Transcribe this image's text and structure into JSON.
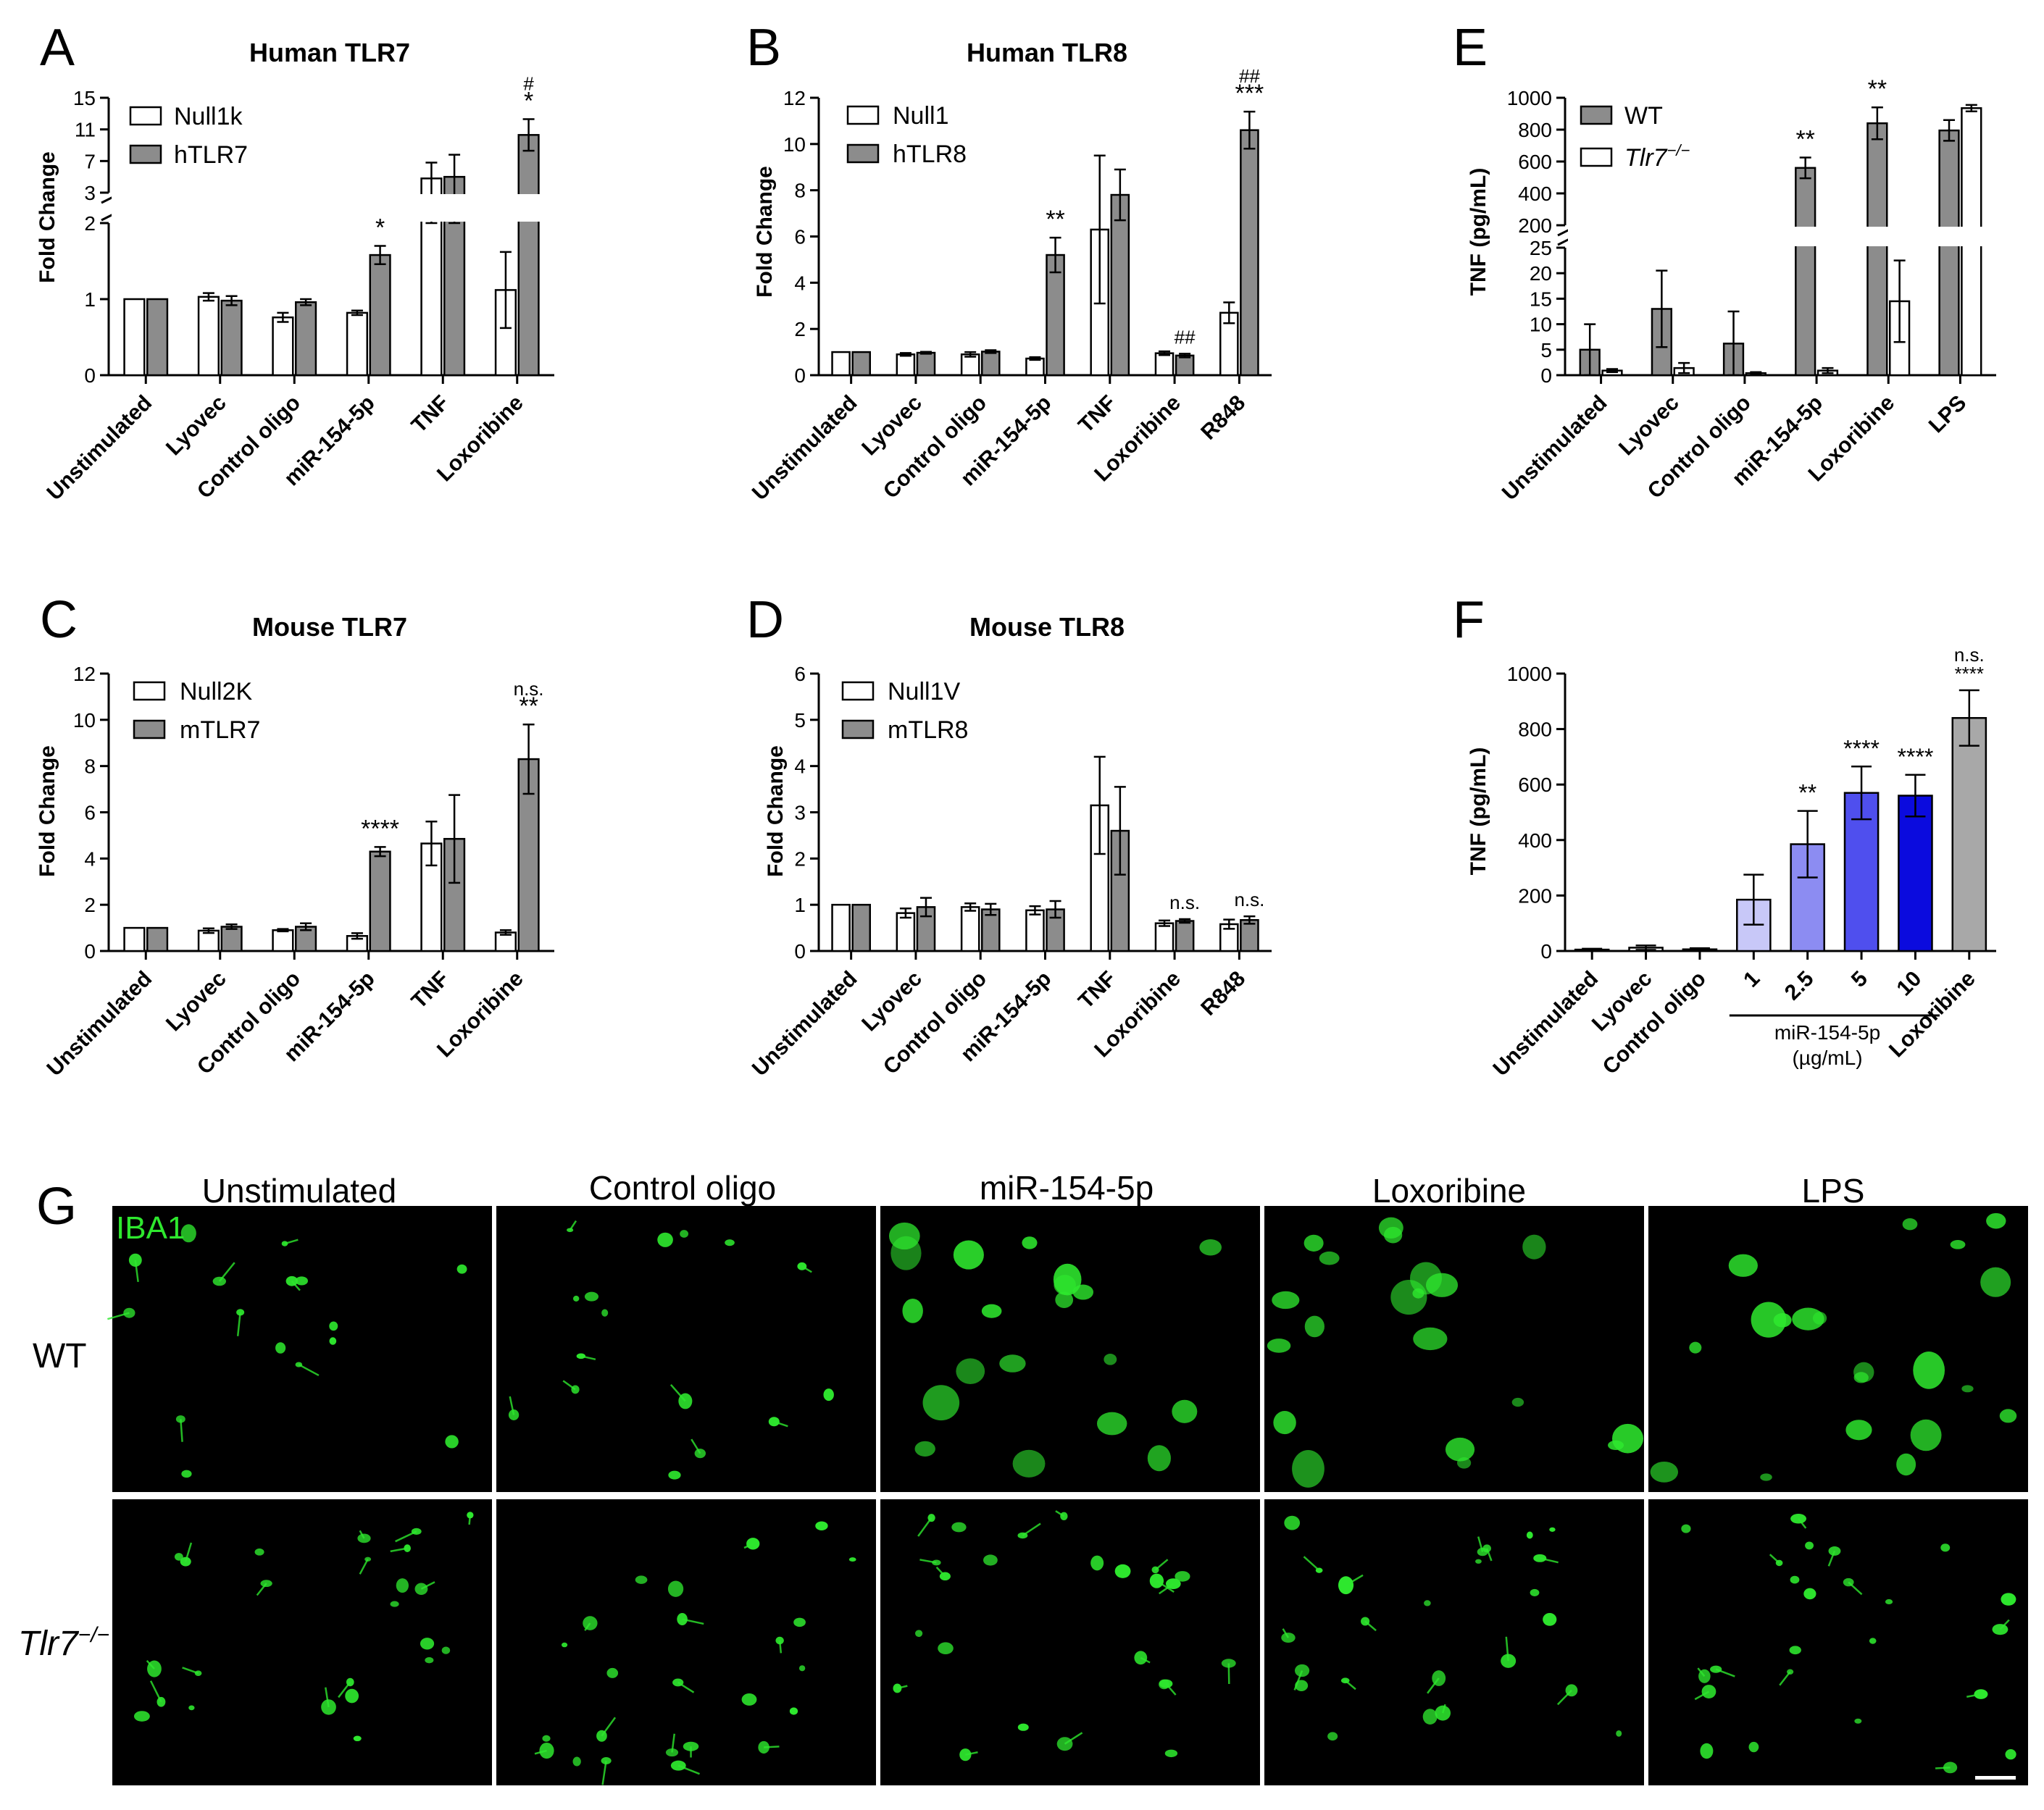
{
  "colors": {
    "bar_gray": "#8c8c8c",
    "bar_white": "#ffffff",
    "iba1_green": "#2ee82e",
    "image_bg": "#000000",
    "doseF": [
      "#c8c8f8",
      "#8c8cf2",
      "#4f4fee",
      "#0b0bde",
      "#a8a8a8"
    ]
  },
  "panels": {
    "A": {
      "letter": "A",
      "title": "Human TLR7",
      "ylabel": "Fold Change",
      "legend": [
        "Null1k",
        "hTLR7"
      ]
    },
    "B": {
      "letter": "B",
      "title": "Human TLR8",
      "ylabel": "Fold  Change",
      "legend": [
        "Null1",
        "hTLR8"
      ]
    },
    "C": {
      "letter": "C",
      "title": "Mouse TLR7",
      "ylabel": "Fold  Change",
      "legend": [
        "Null2K",
        "mTLR7"
      ]
    },
    "D": {
      "letter": "D",
      "title": "Mouse TLR8",
      "ylabel": "Fold  Change",
      "legend": [
        "Null1V",
        "mTLR8"
      ]
    },
    "E": {
      "letter": "E",
      "title": "",
      "ylabel": "TNF (pg/mL)",
      "legend": [
        "WT",
        "Tlr7",
        "−/−"
      ]
    },
    "F": {
      "letter": "F",
      "title": "",
      "ylabel": "TNF (pg/mL)",
      "dose_label_1": "miR-154-5p",
      "dose_label_2": "(µg/mL)"
    },
    "G": {
      "letter": "G",
      "stain": "IBA1",
      "columns": [
        "Unstimulated",
        "Control oligo",
        "miR-154-5p",
        "Loxoribine",
        "LPS"
      ],
      "rows": [
        "WT",
        "Tlr7",
        "−/−"
      ]
    }
  },
  "chart_data": [
    {
      "panel": "A",
      "type": "bar",
      "title": "Human TLR7",
      "xlabel": "",
      "ylabel": "Fold Change",
      "axis_break": {
        "lower": [
          0,
          2
        ],
        "upper": [
          3,
          15
        ]
      },
      "yticks_lower": [
        0,
        1,
        2
      ],
      "yticks_upper": [
        3,
        7,
        11,
        15
      ],
      "categories": [
        "Unstimulated",
        "Lyovec",
        "Control oligo",
        "miR-154-5p",
        "TNF",
        "Loxoribine"
      ],
      "series": [
        {
          "name": "Null1k",
          "color": "#ffffff",
          "values": [
            1.0,
            1.03,
            0.76,
            0.82,
            4.8,
            1.12
          ],
          "errors": [
            0,
            0.05,
            0.06,
            0.03,
            2.0,
            0.5
          ]
        },
        {
          "name": "hTLR7",
          "color": "#8c8c8c",
          "values": [
            1.0,
            0.98,
            0.96,
            1.58,
            5.0,
            10.3
          ],
          "errors": [
            0,
            0.06,
            0.04,
            0.12,
            2.8,
            2.0
          ]
        }
      ],
      "annotations": [
        {
          "category": "miR-154-5p",
          "series": "hTLR7",
          "text": [
            "*"
          ]
        },
        {
          "category": "Loxoribine",
          "series": "hTLR7",
          "text": [
            "#",
            "*"
          ]
        }
      ]
    },
    {
      "panel": "B",
      "type": "bar",
      "title": "Human TLR8",
      "xlabel": "",
      "ylabel": "Fold  Change",
      "ylim": [
        0,
        12
      ],
      "yticks": [
        0,
        2,
        4,
        6,
        8,
        10,
        12
      ],
      "categories": [
        "Unstimulated",
        "Lyovec",
        "Control oligo",
        "miR-154-5p",
        "TNF",
        "Loxoribine",
        "R848"
      ],
      "series": [
        {
          "name": "Null1",
          "color": "#ffffff",
          "values": [
            1.0,
            0.9,
            0.9,
            0.72,
            6.3,
            0.95,
            2.7
          ],
          "errors": [
            0,
            0.06,
            0.1,
            0.06,
            3.2,
            0.08,
            0.45
          ]
        },
        {
          "name": "hTLR8",
          "color": "#8c8c8c",
          "values": [
            1.0,
            0.97,
            1.02,
            5.2,
            7.8,
            0.85,
            10.6
          ],
          "errors": [
            0,
            0.04,
            0.06,
            0.75,
            1.1,
            0.08,
            0.8
          ]
        }
      ],
      "annotations": [
        {
          "category": "miR-154-5p",
          "series": "hTLR8",
          "text": [
            "**"
          ]
        },
        {
          "category": "Loxoribine",
          "series": "hTLR8",
          "text": [
            "##"
          ]
        },
        {
          "category": "R848",
          "series": "hTLR8",
          "text": [
            "##",
            "***"
          ]
        }
      ]
    },
    {
      "panel": "C",
      "type": "bar",
      "title": "Mouse TLR7",
      "xlabel": "",
      "ylabel": "Fold  Change",
      "ylim": [
        0,
        12
      ],
      "yticks": [
        0,
        2,
        4,
        6,
        8,
        10,
        12
      ],
      "categories": [
        "Unstimulated",
        "Lyovec",
        "Control oligo",
        "miR-154-5p",
        "TNF",
        "Loxoribine"
      ],
      "series": [
        {
          "name": "Null2K",
          "color": "#ffffff",
          "values": [
            1.0,
            0.88,
            0.9,
            0.65,
            4.65,
            0.8
          ],
          "errors": [
            0,
            0.1,
            0.05,
            0.12,
            0.95,
            0.1
          ]
        },
        {
          "name": "mTLR7",
          "color": "#8c8c8c",
          "values": [
            1.0,
            1.05,
            1.05,
            4.3,
            4.85,
            8.3
          ],
          "errors": [
            0,
            0.1,
            0.15,
            0.2,
            1.9,
            1.5
          ]
        }
      ],
      "annotations": [
        {
          "category": "miR-154-5p",
          "series": "mTLR7",
          "text": [
            "****"
          ]
        },
        {
          "category": "Loxoribine",
          "series": "mTLR7",
          "text": [
            "n.s.",
            "**"
          ]
        }
      ]
    },
    {
      "panel": "D",
      "type": "bar",
      "title": "Mouse TLR8",
      "xlabel": "",
      "ylabel": "Fold  Change",
      "ylim": [
        0,
        6
      ],
      "yticks": [
        0,
        1,
        2,
        3,
        4,
        5,
        6
      ],
      "categories": [
        "Unstimulated",
        "Lyovec",
        "Control oligo",
        "miR-154-5p",
        "TNF",
        "Loxoribine",
        "R848"
      ],
      "series": [
        {
          "name": "Null1V",
          "color": "#ffffff",
          "values": [
            1.0,
            0.82,
            0.95,
            0.88,
            3.15,
            0.6,
            0.58
          ],
          "errors": [
            0,
            0.1,
            0.08,
            0.09,
            1.05,
            0.06,
            0.1
          ]
        },
        {
          "name": "mTLR8",
          "color": "#8c8c8c",
          "values": [
            1.0,
            0.95,
            0.9,
            0.9,
            2.6,
            0.65,
            0.67
          ],
          "errors": [
            0,
            0.2,
            0.12,
            0.18,
            0.95,
            0.04,
            0.08
          ]
        }
      ],
      "annotations": [
        {
          "category": "Loxoribine",
          "series": "mTLR8",
          "text": [
            "n.s."
          ]
        },
        {
          "category": "R848",
          "series": "mTLR8",
          "text": [
            "n.s."
          ]
        }
      ]
    },
    {
      "panel": "E",
      "type": "bar",
      "title": "",
      "xlabel": "",
      "ylabel": "TNF (pg/mL)",
      "axis_break": {
        "lower": [
          0,
          25
        ],
        "upper": [
          200,
          1000
        ]
      },
      "yticks_lower": [
        0,
        5,
        10,
        15,
        20,
        25
      ],
      "yticks_upper": [
        200,
        400,
        600,
        800,
        1000
      ],
      "categories": [
        "Unstimulated",
        "Lyovec",
        "Control oligo",
        "miR-154-5p",
        "Loxoribine",
        "LPS"
      ],
      "series": [
        {
          "name": "WT",
          "color": "#8c8c8c",
          "values": [
            5,
            13,
            6.2,
            560,
            840,
            795
          ],
          "errors": [
            5,
            7.5,
            6.3,
            65,
            100,
            65
          ]
        },
        {
          "name": "Tlr7−/−",
          "color": "#ffffff",
          "values": [
            0.9,
            1.4,
            0.4,
            0.9,
            14.5,
            935
          ],
          "errors": [
            0.3,
            1.0,
            0.2,
            0.5,
            8,
            20
          ]
        }
      ],
      "annotations": [
        {
          "category": "miR-154-5p",
          "series": "WT",
          "text": [
            "**"
          ]
        },
        {
          "category": "Loxoribine",
          "series": "WT",
          "text": [
            "**"
          ]
        }
      ]
    },
    {
      "panel": "F",
      "type": "bar",
      "title": "",
      "xlabel": "",
      "ylabel": "TNF (pg/mL)",
      "ylim": [
        0,
        1000
      ],
      "yticks": [
        0,
        200,
        400,
        600,
        800,
        1000
      ],
      "categories": [
        "Unstimulated",
        "Lyovec",
        "Control oligo",
        "1",
        "2.5",
        "5",
        "10",
        "Loxoribine"
      ],
      "group_label": {
        "categories": [
          "1",
          "2.5",
          "5",
          "10"
        ],
        "text": [
          "miR-154-5p",
          "(µg/mL)"
        ]
      },
      "values": [
        5,
        12,
        6,
        185,
        385,
        570,
        560,
        840
      ],
      "errors": [
        3,
        8,
        4,
        90,
        120,
        95,
        75,
        100
      ],
      "annotations": [
        {
          "category": "2.5",
          "text": [
            "**"
          ]
        },
        {
          "category": "5",
          "text": [
            "****"
          ]
        },
        {
          "category": "10",
          "text": [
            "****"
          ]
        },
        {
          "category": "Loxoribine",
          "text": [
            "n.s.",
            "****"
          ]
        }
      ]
    }
  ]
}
